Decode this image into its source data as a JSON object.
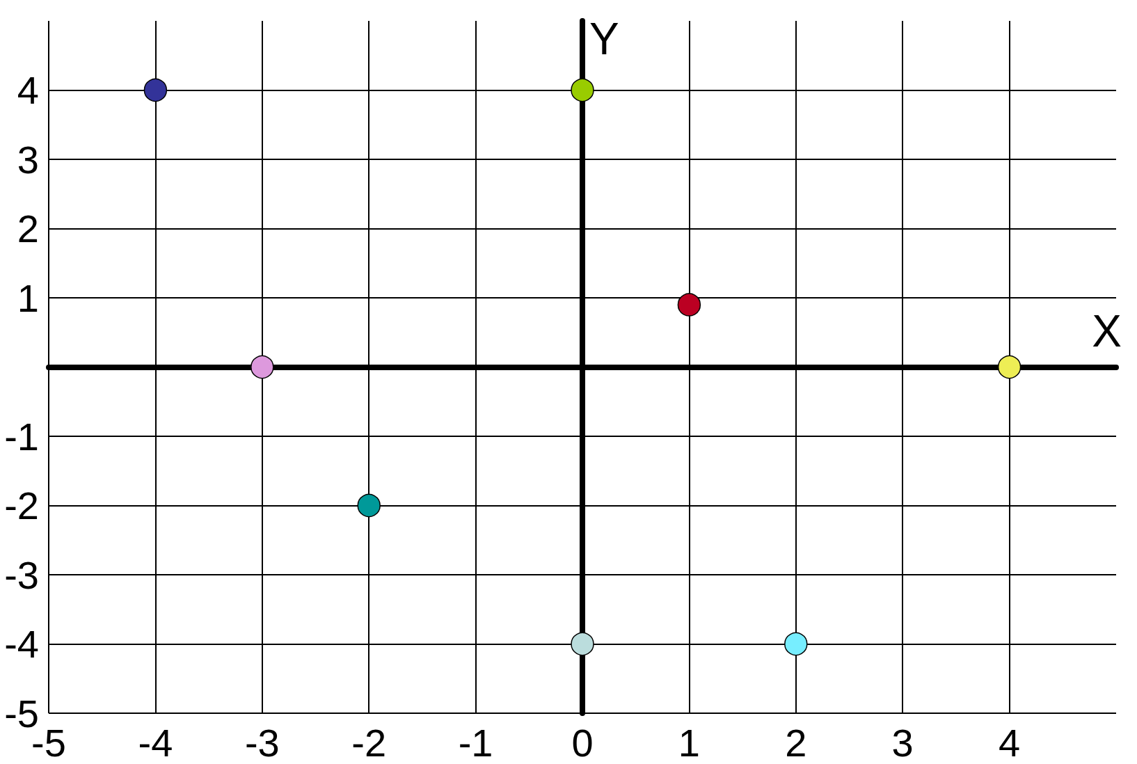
{
  "chart_data": {
    "type": "scatter",
    "xlabel": "X",
    "ylabel": "Y",
    "x": [
      -4,
      0,
      -3,
      1,
      -2,
      0,
      2,
      4
    ],
    "values": [
      4,
      4,
      0,
      0.9,
      -2,
      -4,
      -4,
      0
    ],
    "colors": [
      "#333399",
      "#99cc00",
      "#dd99dd",
      "#bb0022",
      "#009999",
      "#bbdddd",
      "#77eeff",
      "#eeee55"
    ],
    "xlim": [
      -5,
      5
    ],
    "ylim": [
      -5,
      5
    ],
    "xticks": [
      -5,
      -4,
      -3,
      -2,
      -1,
      {
        "value": 0,
        "label": "0"
      },
      1,
      2,
      3,
      4
    ],
    "yticks": [
      -5,
      -4,
      -3,
      -2,
      -1,
      {
        "value": 0,
        "label": null
      },
      1,
      2,
      3,
      4
    ],
    "grid": true,
    "marker": "circle"
  }
}
